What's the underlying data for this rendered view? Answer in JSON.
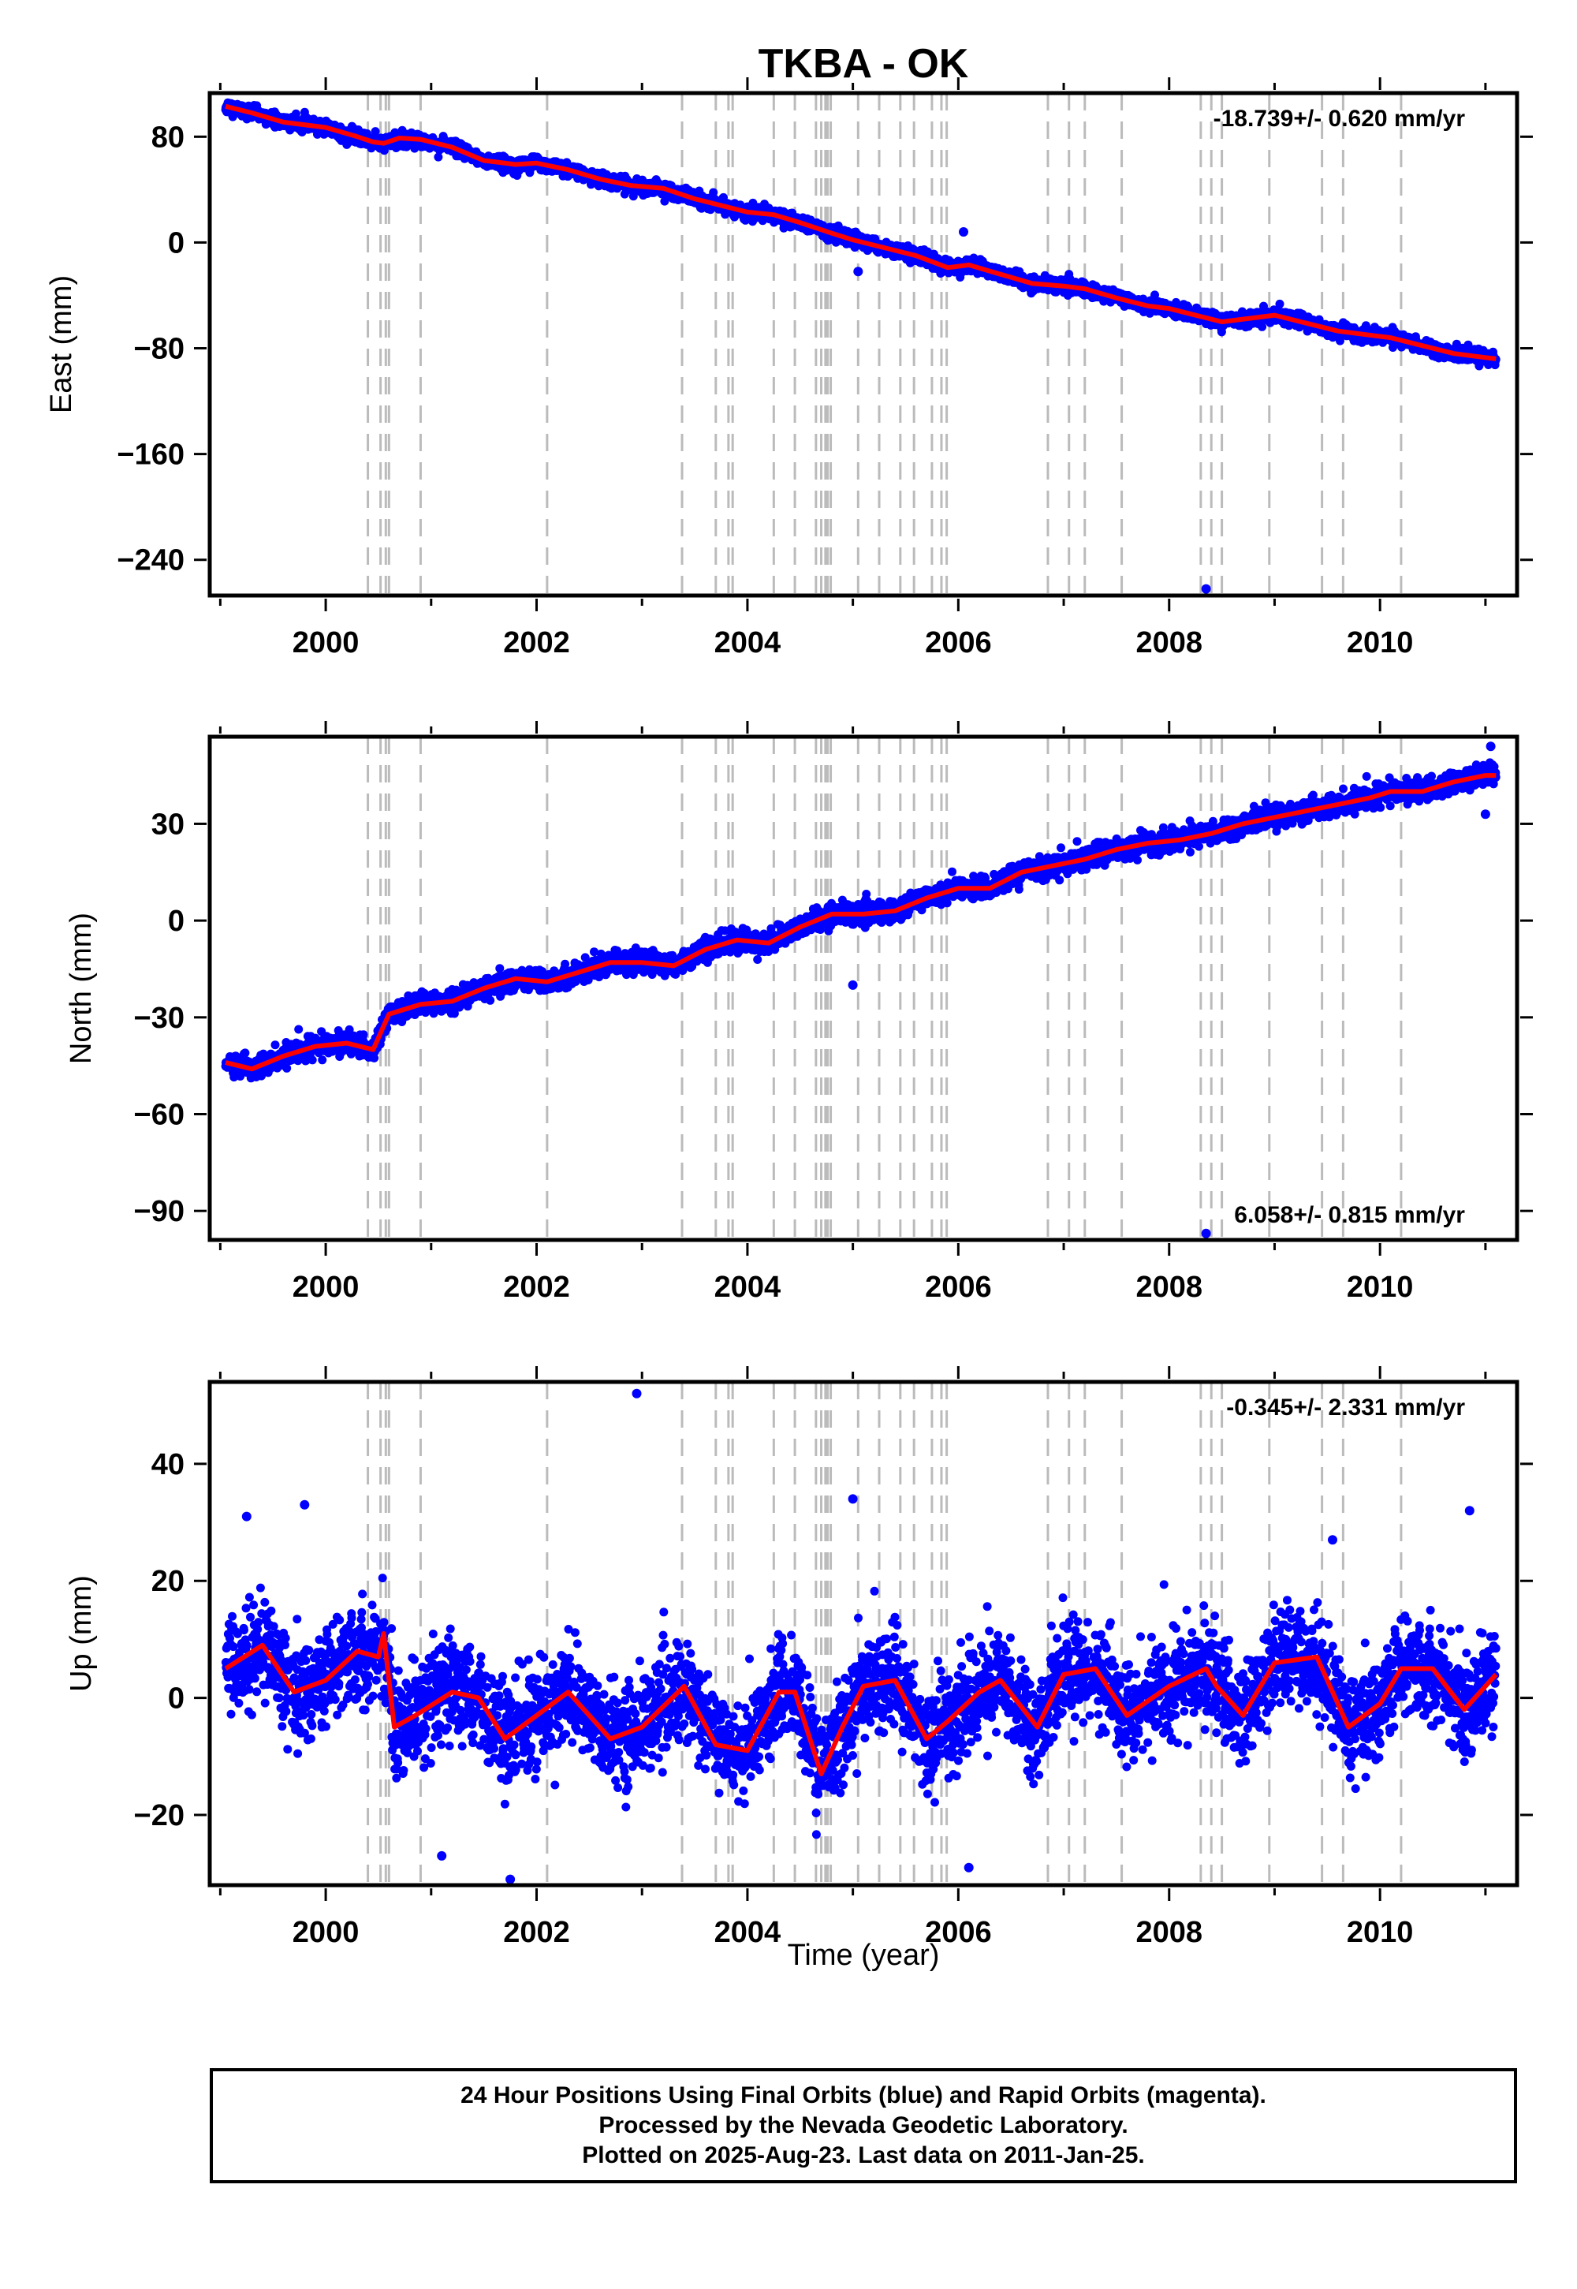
{
  "chart_data": [
    {
      "type": "scatter",
      "panel": "east",
      "title": "TKBA - OK",
      "xlabel": "",
      "ylabel": "East (mm)",
      "xlim": [
        1998.9,
        2011.3
      ],
      "ylim": [
        -267,
        113
      ],
      "xticks": [
        2000,
        2002,
        2004,
        2006,
        2008,
        2010
      ],
      "yticks": [
        -240,
        -160,
        -80,
        0,
        80
      ],
      "rate": "-18.739+/- 0.620 mm/yr",
      "rate_position": "top-right",
      "trend": [
        [
          1999.05,
          103
        ],
        [
          1999.3,
          98
        ],
        [
          1999.6,
          91
        ],
        [
          2000.0,
          87
        ],
        [
          2000.3,
          80
        ],
        [
          2000.45,
          76
        ],
        [
          2000.55,
          75
        ],
        [
          2000.7,
          79
        ],
        [
          2000.9,
          78
        ],
        [
          2001.2,
          72
        ],
        [
          2001.5,
          62
        ],
        [
          2001.8,
          59
        ],
        [
          2002.0,
          60
        ],
        [
          2002.3,
          55
        ],
        [
          2002.6,
          48
        ],
        [
          2002.9,
          43
        ],
        [
          2003.2,
          41
        ],
        [
          2003.5,
          33
        ],
        [
          2003.8,
          27
        ],
        [
          2004.0,
          23
        ],
        [
          2004.25,
          21
        ],
        [
          2004.5,
          15
        ],
        [
          2004.8,
          7
        ],
        [
          2005.0,
          2
        ],
        [
          2005.3,
          -4
        ],
        [
          2005.6,
          -10
        ],
        [
          2005.9,
          -19
        ],
        [
          2006.1,
          -17
        ],
        [
          2006.4,
          -24
        ],
        [
          2006.7,
          -31
        ],
        [
          2007.0,
          -33
        ],
        [
          2007.2,
          -35
        ],
        [
          2007.5,
          -42
        ],
        [
          2007.8,
          -48
        ],
        [
          2008.0,
          -50
        ],
        [
          2008.3,
          -56
        ],
        [
          2008.5,
          -60
        ],
        [
          2008.8,
          -57
        ],
        [
          2009.0,
          -55
        ],
        [
          2009.3,
          -61
        ],
        [
          2009.6,
          -67
        ],
        [
          2009.9,
          -70
        ],
        [
          2010.1,
          -72
        ],
        [
          2010.4,
          -78
        ],
        [
          2010.7,
          -84
        ],
        [
          2011.0,
          -87
        ],
        [
          2011.1,
          -88
        ]
      ],
      "noise": 2.5,
      "outliers": [
        [
          2005.05,
          -22
        ],
        [
          2006.05,
          8
        ],
        [
          2008.35,
          -262
        ]
      ]
    },
    {
      "type": "scatter",
      "panel": "north",
      "xlabel": "",
      "ylabel": "North (mm)",
      "xlim": [
        1998.9,
        2011.3
      ],
      "ylim": [
        -99,
        57
      ],
      "xticks": [
        2000,
        2002,
        2004,
        2006,
        2008,
        2010
      ],
      "yticks": [
        -90,
        -60,
        -30,
        0,
        30
      ],
      "rate": "6.058+/- 0.815 mm/yr",
      "rate_position": "bottom-right",
      "trend": [
        [
          1999.05,
          -44
        ],
        [
          1999.3,
          -46
        ],
        [
          1999.6,
          -42
        ],
        [
          1999.9,
          -39
        ],
        [
          2000.2,
          -38
        ],
        [
          2000.45,
          -40
        ],
        [
          2000.6,
          -29
        ],
        [
          2000.9,
          -26
        ],
        [
          2001.2,
          -25
        ],
        [
          2001.5,
          -21
        ],
        [
          2001.8,
          -18
        ],
        [
          2002.1,
          -19
        ],
        [
          2002.4,
          -16
        ],
        [
          2002.7,
          -13
        ],
        [
          2003.0,
          -13
        ],
        [
          2003.3,
          -14
        ],
        [
          2003.6,
          -9
        ],
        [
          2003.9,
          -6
        ],
        [
          2004.2,
          -7
        ],
        [
          2004.5,
          -2
        ],
        [
          2004.8,
          2
        ],
        [
          2005.1,
          2
        ],
        [
          2005.4,
          3
        ],
        [
          2005.7,
          7
        ],
        [
          2006.0,
          10
        ],
        [
          2006.3,
          10
        ],
        [
          2006.6,
          15
        ],
        [
          2006.9,
          17
        ],
        [
          2007.2,
          19
        ],
        [
          2007.5,
          22
        ],
        [
          2007.8,
          24
        ],
        [
          2008.1,
          25
        ],
        [
          2008.4,
          27
        ],
        [
          2008.7,
          30
        ],
        [
          2009.0,
          32
        ],
        [
          2009.3,
          34
        ],
        [
          2009.6,
          36
        ],
        [
          2009.9,
          38
        ],
        [
          2010.1,
          40
        ],
        [
          2010.4,
          40
        ],
        [
          2010.7,
          43
        ],
        [
          2011.0,
          45
        ],
        [
          2011.1,
          45
        ]
      ],
      "noise": 1.6,
      "outliers": [
        [
          2005.0,
          -20
        ],
        [
          2008.35,
          -97
        ],
        [
          2011.05,
          54
        ],
        [
          2011.0,
          33
        ]
      ]
    },
    {
      "type": "scatter",
      "panel": "up",
      "xlabel": "Time (year)",
      "ylabel": "Up (mm)",
      "xlim": [
        1998.9,
        2011.3
      ],
      "ylim": [
        -32,
        54
      ],
      "xticks": [
        2000,
        2002,
        2004,
        2006,
        2008,
        2010
      ],
      "yticks": [
        -20,
        0,
        20,
        40
      ],
      "rate": "-0.345+/- 2.331 mm/yr",
      "rate_position": "top-right",
      "trend": [
        [
          1999.05,
          5
        ],
        [
          1999.4,
          9
        ],
        [
          1999.7,
          1
        ],
        [
          2000.0,
          3
        ],
        [
          2000.3,
          8
        ],
        [
          2000.5,
          7
        ],
        [
          2000.55,
          11
        ],
        [
          2000.65,
          -5
        ],
        [
          2000.85,
          -3
        ],
        [
          2001.2,
          1
        ],
        [
          2001.45,
          0
        ],
        [
          2001.7,
          -7
        ],
        [
          2002.0,
          -3
        ],
        [
          2002.3,
          1
        ],
        [
          2002.7,
          -7
        ],
        [
          2003.0,
          -5
        ],
        [
          2003.4,
          2
        ],
        [
          2003.7,
          -8
        ],
        [
          2004.0,
          -9
        ],
        [
          2004.3,
          1
        ],
        [
          2004.45,
          1
        ],
        [
          2004.7,
          -13
        ],
        [
          2004.9,
          -5
        ],
        [
          2005.1,
          2
        ],
        [
          2005.4,
          3
        ],
        [
          2005.7,
          -7
        ],
        [
          2005.9,
          -4
        ],
        [
          2006.2,
          1
        ],
        [
          2006.4,
          3
        ],
        [
          2006.75,
          -5
        ],
        [
          2007.0,
          4
        ],
        [
          2007.3,
          5
        ],
        [
          2007.6,
          -3
        ],
        [
          2008.0,
          2
        ],
        [
          2008.35,
          5
        ],
        [
          2008.45,
          2
        ],
        [
          2008.7,
          -3
        ],
        [
          2009.0,
          6
        ],
        [
          2009.4,
          7
        ],
        [
          2009.7,
          -5
        ],
        [
          2010.0,
          -1
        ],
        [
          2010.2,
          5
        ],
        [
          2010.5,
          5
        ],
        [
          2010.8,
          -2
        ],
        [
          2011.1,
          4
        ]
      ],
      "noise": 4.2,
      "outliers": [
        [
          2002.95,
          52
        ],
        [
          2005.0,
          34
        ],
        [
          2009.55,
          27
        ],
        [
          2010.85,
          32
        ],
        [
          2001.75,
          -31
        ],
        [
          2006.1,
          -29
        ],
        [
          2001.1,
          -27
        ],
        [
          1999.25,
          31
        ],
        [
          1999.8,
          33
        ]
      ]
    }
  ],
  "event_lines": [
    2000.4,
    2000.52,
    2000.57,
    2000.6,
    2000.9,
    2002.1,
    2003.38,
    2003.7,
    2003.82,
    2003.86,
    2004.25,
    2004.45,
    2004.65,
    2004.7,
    2004.74,
    2004.76,
    2004.79,
    2005.05,
    2005.25,
    2005.45,
    2005.58,
    2005.75,
    2005.84,
    2005.89,
    2006.85,
    2007.05,
    2007.2,
    2007.55,
    2008.3,
    2008.4,
    2008.5,
    2008.95,
    2009.45,
    2009.65,
    2010.2
  ],
  "colors": {
    "final_orbits": "#0000ff",
    "rapid_orbits": "#ff00ff",
    "model": "#ff0000",
    "event_lines": "#bbbbbb"
  },
  "footer": {
    "line1": "24 Hour Positions Using Final Orbits (blue) and Rapid Orbits (magenta).",
    "line2": "Processed by the Nevada Geodetic Laboratory.",
    "line3": "Plotted on 2025-Aug-23. Last data on 2011-Jan-25."
  }
}
